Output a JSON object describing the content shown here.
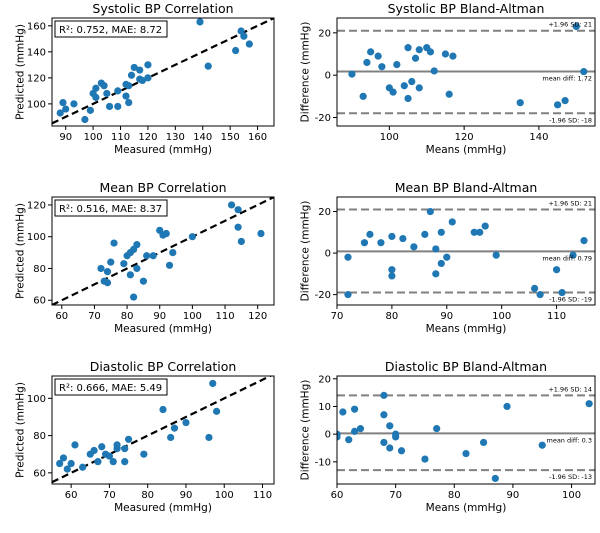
{
  "chart_data": [
    {
      "type": "scatter",
      "title": "Systolic BP Correlation",
      "xlabel": "Measured (mmHg)",
      "ylabel": "Predicted (mmHg)",
      "xlim": [
        85,
        166
      ],
      "ylim": [
        83,
        166
      ],
      "xticks": [
        90,
        100,
        110,
        120,
        130,
        140,
        150,
        160
      ],
      "yticks": [
        100,
        120,
        140,
        160
      ],
      "grid": false,
      "annotation": "R²: 0.752, MAE: 8.72",
      "identity_line": true,
      "points": [
        [
          88,
          93
        ],
        [
          89,
          101
        ],
        [
          90,
          96
        ],
        [
          93,
          100
        ],
        [
          97,
          88
        ],
        [
          99,
          95
        ],
        [
          100,
          108
        ],
        [
          101,
          112
        ],
        [
          101,
          105
        ],
        [
          103,
          116
        ],
        [
          104,
          114
        ],
        [
          105,
          108
        ],
        [
          106,
          98
        ],
        [
          109,
          98
        ],
        [
          109,
          110
        ],
        [
          112,
          115
        ],
        [
          112,
          106
        ],
        [
          113,
          101
        ],
        [
          113,
          114
        ],
        [
          114,
          122
        ],
        [
          117,
          119
        ],
        [
          117,
          126
        ],
        [
          118,
          118
        ],
        [
          120,
          120
        ],
        [
          120,
          130
        ],
        [
          115,
          128
        ],
        [
          139,
          163
        ],
        [
          142,
          129
        ],
        [
          152,
          141
        ],
        [
          154,
          156
        ],
        [
          155,
          152
        ],
        [
          157,
          146
        ]
      ]
    },
    {
      "type": "scatter",
      "title": "Systolic BP Bland-Altman",
      "xlabel": "Means (mmHg)",
      "ylabel": "Difference (mmHg)",
      "xlim": [
        86,
        155
      ],
      "ylim": [
        -24,
        27
      ],
      "xticks": [
        100,
        120,
        140
      ],
      "yticks": [
        -20,
        0,
        20
      ],
      "grid": false,
      "mean_line": {
        "value": 1.72,
        "label": "mean diff: 1.72"
      },
      "upper_loa": {
        "value": 21,
        "label": "+1.96 SD: 21"
      },
      "lower_loa": {
        "value": -18,
        "label": "-1.96 SD: -18"
      },
      "points": [
        [
          90,
          0.5
        ],
        [
          93,
          -10
        ],
        [
          94,
          6
        ],
        [
          95,
          11
        ],
        [
          97,
          9
        ],
        [
          98,
          4
        ],
        [
          100,
          -6
        ],
        [
          101,
          -8
        ],
        [
          102,
          5
        ],
        [
          104,
          -5
        ],
        [
          105,
          -11
        ],
        [
          105,
          13
        ],
        [
          106,
          -3
        ],
        [
          107,
          8
        ],
        [
          108,
          -6
        ],
        [
          108,
          12
        ],
        [
          110,
          13
        ],
        [
          111,
          11
        ],
        [
          112,
          2
        ],
        [
          115,
          10
        ],
        [
          116,
          -9
        ],
        [
          117,
          9
        ],
        [
          135,
          -13
        ],
        [
          145,
          -14
        ],
        [
          147,
          -12
        ],
        [
          150,
          23
        ],
        [
          152,
          1.7
        ]
      ]
    },
    {
      "type": "scatter",
      "title": "Mean BP Correlation",
      "xlabel": "Measured (mmHg)",
      "ylabel": "Predicted (mmHg)",
      "xlim": [
        57,
        125
      ],
      "ylim": [
        57,
        125
      ],
      "xticks": [
        60,
        70,
        80,
        90,
        100,
        110,
        120
      ],
      "yticks": [
        60,
        80,
        100,
        120
      ],
      "grid": false,
      "annotation": "R²: 0.516, MAE: 8.37",
      "identity_line": true,
      "points": [
        [
          72,
          80
        ],
        [
          73,
          72
        ],
        [
          74,
          71
        ],
        [
          74,
          78
        ],
        [
          75,
          84
        ],
        [
          76,
          96
        ],
        [
          79,
          83
        ],
        [
          80,
          88
        ],
        [
          81,
          76
        ],
        [
          81,
          90
        ],
        [
          82,
          92
        ],
        [
          83,
          95
        ],
        [
          82,
          62
        ],
        [
          83,
          80
        ],
        [
          85,
          72
        ],
        [
          86,
          88
        ],
        [
          88,
          88
        ],
        [
          90,
          104
        ],
        [
          91,
          101
        ],
        [
          92,
          102
        ],
        [
          93,
          82
        ],
        [
          94,
          90
        ],
        [
          100,
          100
        ],
        [
          112,
          120
        ],
        [
          114,
          117
        ],
        [
          114,
          106
        ],
        [
          115,
          97
        ],
        [
          121,
          102
        ]
      ]
    },
    {
      "type": "scatter",
      "title": "Mean BP Bland-Altman",
      "xlabel": "Means (mmHg)",
      "ylabel": "Difference (mmHg)",
      "xlim": [
        70,
        117
      ],
      "ylim": [
        -25,
        27
      ],
      "xticks": [
        70,
        80,
        90,
        100,
        110
      ],
      "yticks": [
        -20,
        0,
        20
      ],
      "grid": false,
      "mean_line": {
        "value": 0.79,
        "label": "mean diff: 0.79"
      },
      "upper_loa": {
        "value": 21,
        "label": "+1.96 SD: 21"
      },
      "lower_loa": {
        "value": -19,
        "label": "-1.96 SD: -19"
      },
      "points": [
        [
          72,
          -2
        ],
        [
          72,
          -20
        ],
        [
          75,
          5
        ],
        [
          76,
          9
        ],
        [
          78,
          5
        ],
        [
          80,
          8
        ],
        [
          80,
          -11
        ],
        [
          80,
          -8
        ],
        [
          82,
          7
        ],
        [
          84,
          3
        ],
        [
          86,
          9
        ],
        [
          87,
          20
        ],
        [
          88,
          -10
        ],
        [
          88,
          2
        ],
        [
          89,
          10
        ],
        [
          89,
          -5
        ],
        [
          90,
          -2
        ],
        [
          91,
          15
        ],
        [
          95,
          10
        ],
        [
          96,
          10
        ],
        [
          97,
          13
        ],
        [
          99,
          -1
        ],
        [
          106,
          -17
        ],
        [
          107,
          -20
        ],
        [
          110,
          -8
        ],
        [
          111,
          -19
        ],
        [
          113,
          -1
        ],
        [
          115,
          6
        ]
      ]
    },
    {
      "type": "scatter",
      "title": "Diastolic BP Correlation",
      "xlabel": "Measured (mmHg)",
      "ylabel": "Predicted (mmHg)",
      "xlim": [
        55,
        113
      ],
      "ylim": [
        54,
        112
      ],
      "xticks": [
        60,
        70,
        80,
        90,
        100,
        110
      ],
      "yticks": [
        60,
        80,
        100
      ],
      "grid": false,
      "annotation": "R²: 0.666, MAE: 5.49",
      "identity_line": true,
      "points": [
        [
          57,
          65
        ],
        [
          58,
          68
        ],
        [
          59,
          62
        ],
        [
          60,
          65
        ],
        [
          61,
          75
        ],
        [
          63,
          63
        ],
        [
          65,
          70
        ],
        [
          66,
          72
        ],
        [
          67,
          66
        ],
        [
          68,
          74
        ],
        [
          69,
          70
        ],
        [
          70,
          69
        ],
        [
          71,
          66
        ],
        [
          72,
          73
        ],
        [
          72,
          75
        ],
        [
          74,
          66
        ],
        [
          74,
          73
        ],
        [
          75,
          78
        ],
        [
          79,
          70
        ],
        [
          84,
          94
        ],
        [
          86,
          79
        ],
        [
          87,
          84
        ],
        [
          90,
          87
        ],
        [
          96,
          79
        ],
        [
          97,
          108
        ],
        [
          98,
          93
        ]
      ]
    },
    {
      "type": "scatter",
      "title": "Diastolic BP Bland-Altman",
      "xlabel": "Means (mmHg)",
      "ylabel": "Difference (mmHg)",
      "xlim": [
        60,
        104
      ],
      "ylim": [
        -18,
        21
      ],
      "xticks": [
        60,
        70,
        80,
        90,
        100
      ],
      "yticks": [
        -10,
        0,
        10,
        20
      ],
      "grid": false,
      "mean_line": {
        "value": 0.3,
        "label": "mean diff: 0.3"
      },
      "upper_loa": {
        "value": 14,
        "label": "+1.96 SD: 14"
      },
      "lower_loa": {
        "value": -13,
        "label": "-1.96 SD: -13"
      },
      "points": [
        [
          60,
          0
        ],
        [
          60,
          -1
        ],
        [
          61,
          8
        ],
        [
          62,
          -2
        ],
        [
          63,
          1
        ],
        [
          63,
          9
        ],
        [
          64,
          2
        ],
        [
          68,
          14
        ],
        [
          68,
          7
        ],
        [
          68,
          -3
        ],
        [
          69,
          -5
        ],
        [
          69,
          3
        ],
        [
          70,
          -1
        ],
        [
          70,
          0
        ],
        [
          71,
          -6
        ],
        [
          75,
          -9
        ],
        [
          77,
          2
        ],
        [
          82,
          -7
        ],
        [
          85,
          -3
        ],
        [
          87,
          -16
        ],
        [
          89,
          10
        ],
        [
          95,
          -4
        ],
        [
          103,
          11
        ]
      ]
    }
  ],
  "colors": {
    "points": "#1f77b4",
    "identity_line": "#000000",
    "mean_line": "#808080",
    "loa_line": "#808080"
  }
}
